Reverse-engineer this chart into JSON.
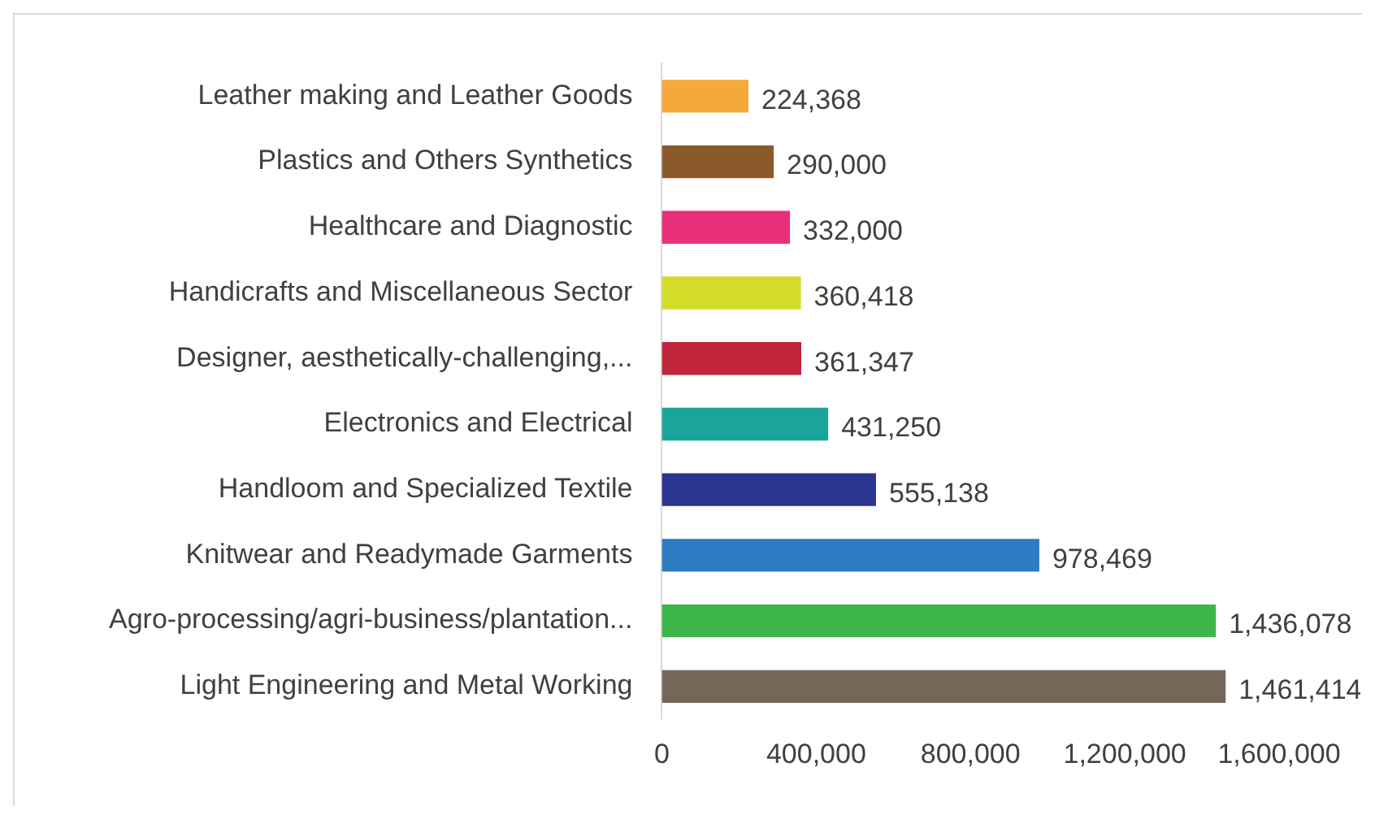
{
  "chart_data": {
    "type": "bar",
    "orientation": "horizontal",
    "categories": [
      "Leather making and Leather Goods",
      "Plastics and Others Synthetics",
      "Healthcare and Diagnostic",
      "Handicrafts and Miscellaneous Sector",
      "Designer, aesthetically-challenging,...",
      "Electronics and Electrical",
      "Handloom and Specialized Textile",
      "Knitwear and Readymade Garments",
      "Agro-processing/agri-business/plantation...",
      "Light Engineering and Metal Working"
    ],
    "values": [
      224368,
      290000,
      332000,
      360418,
      361347,
      431250,
      555138,
      978469,
      1436078,
      1461414
    ],
    "colors": [
      "#f4a93a",
      "#8b5a2b",
      "#e8307a",
      "#d4dc2a",
      "#c0253a",
      "#1aa59a",
      "#2a3590",
      "#2e7bc4",
      "#3cb54a",
      "#756758"
    ],
    "value_labels": [
      "224,368",
      "290,000",
      "332,000",
      "360,418",
      "361,347",
      "431,250",
      "555,138",
      "978,469",
      "1,436,078",
      "1,461,414"
    ],
    "xlim": [
      0,
      1600000
    ],
    "xticks": [
      {
        "value": 0,
        "label": "0"
      },
      {
        "value": 400000,
        "label": "400,000"
      },
      {
        "value": 800000,
        "label": "800,000"
      },
      {
        "value": 1200000,
        "label": "1,200,000"
      },
      {
        "value": 1600000,
        "label": "1,600,000"
      }
    ],
    "grid": false,
    "legend": false
  }
}
